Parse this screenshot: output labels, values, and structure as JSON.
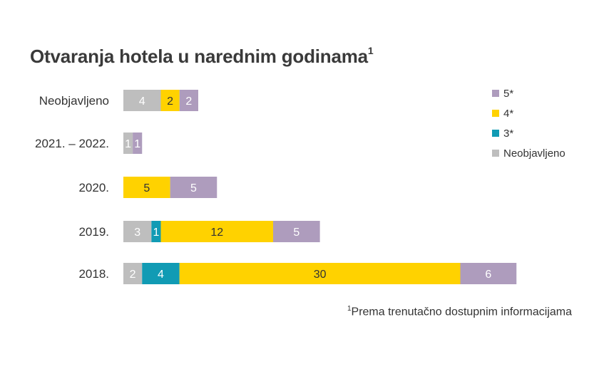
{
  "title": "Otvaranja hotela u narednim godinama",
  "title_sup": "1",
  "footnote": {
    "sup": "1",
    "text": "Prema trenutačno dostupnim informacijama"
  },
  "chart_data": {
    "type": "bar",
    "orientation": "horizontal",
    "stacked": true,
    "categories": [
      "Neobjavljeno",
      "2021. – 2022.",
      "2020.",
      "2019.",
      "2018."
    ],
    "series": [
      {
        "name": "Neobjavljeno",
        "color": "#bebebe",
        "values": [
          4,
          1,
          0,
          3,
          2
        ]
      },
      {
        "name": "3*",
        "color": "#119bb4",
        "values": [
          0,
          0,
          0,
          1,
          4
        ]
      },
      {
        "name": "4*",
        "color": "#ffd200",
        "values": [
          2,
          0,
          5,
          12,
          30
        ]
      },
      {
        "name": "5*",
        "color": "#ae9cbd",
        "values": [
          2,
          1,
          5,
          5,
          6
        ]
      }
    ],
    "legend_order": [
      "5*",
      "4*",
      "3*",
      "Neobjavljeno"
    ],
    "legend_position": "top-right",
    "xlim": [
      0,
      42
    ],
    "grid": false,
    "data_labels": true,
    "label_color": "#333333",
    "label_color_light": "#ffffff"
  }
}
